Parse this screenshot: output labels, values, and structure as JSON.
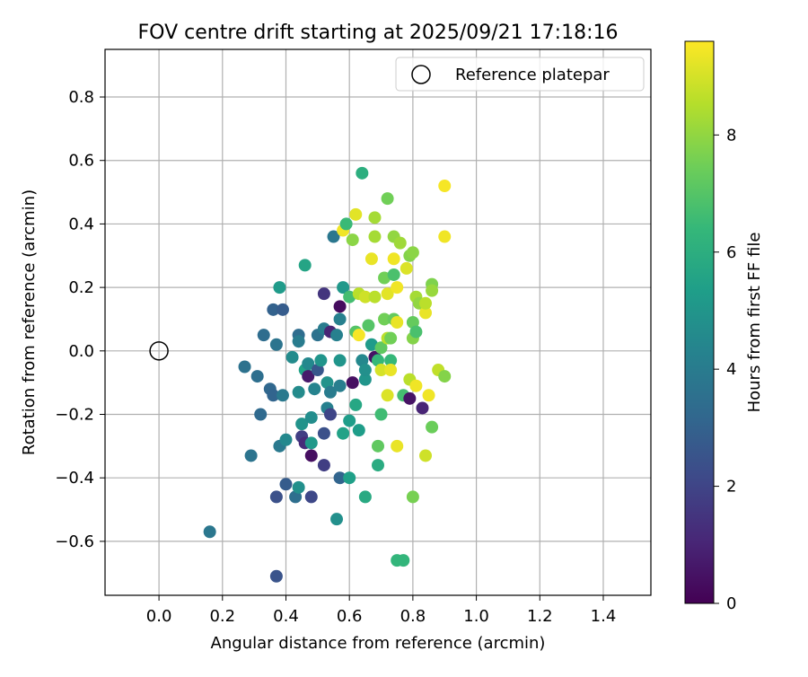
{
  "chart_data": {
    "type": "scatter",
    "title": "FOV centre drift starting at 2025/09/21 17:18:16",
    "xlabel": "Angular distance from reference (arcmin)",
    "ylabel": "Rotation from reference (arcmin)",
    "xlim": [
      -0.17,
      1.55
    ],
    "ylim": [
      -0.77,
      0.95
    ],
    "x_ticks": [
      "0.0",
      "0.2",
      "0.4",
      "0.6",
      "0.8",
      "1.0",
      "1.2",
      "1.4"
    ],
    "x_tick_values": [
      0.0,
      0.2,
      0.4,
      0.6,
      0.8,
      1.0,
      1.2,
      1.4
    ],
    "y_ticks": [
      "−0.6",
      "−0.4",
      "−0.2",
      "0.0",
      "0.2",
      "0.4",
      "0.6",
      "0.8"
    ],
    "y_tick_values": [
      -0.6,
      -0.4,
      -0.2,
      0.0,
      0.2,
      0.4,
      0.6,
      0.8
    ],
    "grid": true,
    "legend": {
      "label": "Reference platepar",
      "location": "top-right"
    },
    "reference": {
      "x": 0.0,
      "y": 0.0
    },
    "colorbar": {
      "label": "Hours from first FF file",
      "range": [
        0,
        9.6
      ],
      "ticks": [
        "0",
        "2",
        "4",
        "6",
        "8"
      ],
      "tick_values": [
        0,
        2,
        4,
        6,
        8
      ],
      "colormap_stops": [
        "#440154",
        "#482777",
        "#3e4989",
        "#31688e",
        "#26828e",
        "#1f9e89",
        "#35b779",
        "#6ece58",
        "#b5de2b",
        "#fde725"
      ]
    },
    "points": [
      {
        "x": 0.16,
        "y": -0.57,
        "t": 3.8
      },
      {
        "x": 0.27,
        "y": -0.05,
        "t": 3.6
      },
      {
        "x": 0.29,
        "y": -0.33,
        "t": 3.7
      },
      {
        "x": 0.31,
        "y": -0.08,
        "t": 3.5
      },
      {
        "x": 0.32,
        "y": -0.2,
        "t": 3.3
      },
      {
        "x": 0.33,
        "y": 0.05,
        "t": 3.4
      },
      {
        "x": 0.35,
        "y": -0.12,
        "t": 3.2
      },
      {
        "x": 0.36,
        "y": 0.13,
        "t": 3.0
      },
      {
        "x": 0.36,
        "y": -0.14,
        "t": 3.1
      },
      {
        "x": 0.37,
        "y": -0.46,
        "t": 2.4
      },
      {
        "x": 0.37,
        "y": -0.71,
        "t": 2.5
      },
      {
        "x": 0.37,
        "y": 0.02,
        "t": 3.7
      },
      {
        "x": 0.38,
        "y": 0.2,
        "t": 5.2
      },
      {
        "x": 0.38,
        "y": -0.3,
        "t": 3.9
      },
      {
        "x": 0.39,
        "y": 0.13,
        "t": 2.8
      },
      {
        "x": 0.39,
        "y": -0.14,
        "t": 3.9
      },
      {
        "x": 0.4,
        "y": -0.28,
        "t": 4.5
      },
      {
        "x": 0.4,
        "y": -0.42,
        "t": 2.8
      },
      {
        "x": 0.42,
        "y": -0.02,
        "t": 4.6
      },
      {
        "x": 0.43,
        "y": -0.46,
        "t": 3.5
      },
      {
        "x": 0.44,
        "y": 0.05,
        "t": 3.4
      },
      {
        "x": 0.44,
        "y": 0.03,
        "t": 4.0
      },
      {
        "x": 0.44,
        "y": -0.43,
        "t": 4.8
      },
      {
        "x": 0.44,
        "y": -0.13,
        "t": 4.6
      },
      {
        "x": 0.45,
        "y": -0.27,
        "t": 1.8
      },
      {
        "x": 0.45,
        "y": -0.23,
        "t": 4.9
      },
      {
        "x": 0.46,
        "y": -0.29,
        "t": 1.2
      },
      {
        "x": 0.46,
        "y": -0.06,
        "t": 5.5
      },
      {
        "x": 0.46,
        "y": 0.27,
        "t": 5.6
      },
      {
        "x": 0.47,
        "y": -0.08,
        "t": 0.7
      },
      {
        "x": 0.47,
        "y": -0.04,
        "t": 4.5
      },
      {
        "x": 0.48,
        "y": -0.29,
        "t": 5.1
      },
      {
        "x": 0.48,
        "y": -0.33,
        "t": 0.4
      },
      {
        "x": 0.48,
        "y": -0.21,
        "t": 4.7
      },
      {
        "x": 0.48,
        "y": -0.46,
        "t": 2.1
      },
      {
        "x": 0.49,
        "y": -0.12,
        "t": 4.3
      },
      {
        "x": 0.5,
        "y": 0.05,
        "t": 3.6
      },
      {
        "x": 0.5,
        "y": -0.06,
        "t": 2.6
      },
      {
        "x": 0.51,
        "y": -0.03,
        "t": 5.0
      },
      {
        "x": 0.52,
        "y": 0.07,
        "t": 4.0
      },
      {
        "x": 0.52,
        "y": 0.18,
        "t": 1.5
      },
      {
        "x": 0.52,
        "y": -0.26,
        "t": 2.4
      },
      {
        "x": 0.52,
        "y": -0.36,
        "t": 1.8
      },
      {
        "x": 0.53,
        "y": -0.18,
        "t": 4.2
      },
      {
        "x": 0.53,
        "y": -0.1,
        "t": 4.9
      },
      {
        "x": 0.54,
        "y": -0.2,
        "t": 2.0
      },
      {
        "x": 0.54,
        "y": 0.06,
        "t": 1.0
      },
      {
        "x": 0.54,
        "y": -0.13,
        "t": 4.0
      },
      {
        "x": 0.55,
        "y": 0.36,
        "t": 3.8
      },
      {
        "x": 0.56,
        "y": 0.05,
        "t": 4.2
      },
      {
        "x": 0.56,
        "y": -0.53,
        "t": 4.8
      },
      {
        "x": 0.57,
        "y": -0.11,
        "t": 4.1
      },
      {
        "x": 0.57,
        "y": -0.03,
        "t": 5.0
      },
      {
        "x": 0.57,
        "y": -0.4,
        "t": 3.1
      },
      {
        "x": 0.57,
        "y": 0.1,
        "t": 4.2
      },
      {
        "x": 0.57,
        "y": 0.14,
        "t": 0.3
      },
      {
        "x": 0.58,
        "y": 0.38,
        "t": 9.4
      },
      {
        "x": 0.58,
        "y": -0.26,
        "t": 5.5
      },
      {
        "x": 0.58,
        "y": 0.2,
        "t": 5.1
      },
      {
        "x": 0.59,
        "y": 0.4,
        "t": 6.5
      },
      {
        "x": 0.6,
        "y": -0.22,
        "t": 5.3
      },
      {
        "x": 0.6,
        "y": -0.4,
        "t": 5.4
      },
      {
        "x": 0.6,
        "y": 0.17,
        "t": 6.7
      },
      {
        "x": 0.61,
        "y": -0.1,
        "t": 0.4
      },
      {
        "x": 0.61,
        "y": 0.35,
        "t": 7.9
      },
      {
        "x": 0.62,
        "y": 0.43,
        "t": 9.2
      },
      {
        "x": 0.62,
        "y": 0.06,
        "t": 7.0
      },
      {
        "x": 0.62,
        "y": -0.17,
        "t": 5.7
      },
      {
        "x": 0.63,
        "y": 0.05,
        "t": 9.5
      },
      {
        "x": 0.63,
        "y": -0.25,
        "t": 5.3
      },
      {
        "x": 0.63,
        "y": 0.18,
        "t": 8.6
      },
      {
        "x": 0.64,
        "y": 0.56,
        "t": 6.0
      },
      {
        "x": 0.64,
        "y": -0.03,
        "t": 4.5
      },
      {
        "x": 0.65,
        "y": -0.46,
        "t": 5.8
      },
      {
        "x": 0.65,
        "y": -0.09,
        "t": 5.0
      },
      {
        "x": 0.65,
        "y": -0.06,
        "t": 4.8
      },
      {
        "x": 0.65,
        "y": 0.17,
        "t": 8.9
      },
      {
        "x": 0.66,
        "y": 0.08,
        "t": 7.0
      },
      {
        "x": 0.67,
        "y": 0.29,
        "t": 9.3
      },
      {
        "x": 0.67,
        "y": 0.02,
        "t": 5.2
      },
      {
        "x": 0.68,
        "y": 0.42,
        "t": 8.3
      },
      {
        "x": 0.68,
        "y": 0.36,
        "t": 8.3
      },
      {
        "x": 0.68,
        "y": 0.17,
        "t": 8.6
      },
      {
        "x": 0.68,
        "y": -0.02,
        "t": 0.5
      },
      {
        "x": 0.69,
        "y": -0.3,
        "t": 7.2
      },
      {
        "x": 0.69,
        "y": -0.36,
        "t": 5.9
      },
      {
        "x": 0.69,
        "y": -0.03,
        "t": 6.4
      },
      {
        "x": 0.7,
        "y": 0.01,
        "t": 7.2
      },
      {
        "x": 0.7,
        "y": -0.2,
        "t": 6.6
      },
      {
        "x": 0.7,
        "y": -0.06,
        "t": 9.0
      },
      {
        "x": 0.71,
        "y": 0.23,
        "t": 7.5
      },
      {
        "x": 0.71,
        "y": 0.1,
        "t": 7.5
      },
      {
        "x": 0.72,
        "y": 0.48,
        "t": 7.5
      },
      {
        "x": 0.72,
        "y": 0.18,
        "t": 9.2
      },
      {
        "x": 0.72,
        "y": 0.04,
        "t": 8.6
      },
      {
        "x": 0.72,
        "y": -0.14,
        "t": 9.1
      },
      {
        "x": 0.73,
        "y": -0.03,
        "t": 6.4
      },
      {
        "x": 0.73,
        "y": -0.06,
        "t": 9.3
      },
      {
        "x": 0.73,
        "y": 0.04,
        "t": 7.5
      },
      {
        "x": 0.74,
        "y": 0.36,
        "t": 8.0
      },
      {
        "x": 0.74,
        "y": 0.29,
        "t": 9.4
      },
      {
        "x": 0.74,
        "y": 0.24,
        "t": 6.8
      },
      {
        "x": 0.74,
        "y": 0.1,
        "t": 7.3
      },
      {
        "x": 0.75,
        "y": 0.2,
        "t": 9.4
      },
      {
        "x": 0.75,
        "y": 0.09,
        "t": 9.3
      },
      {
        "x": 0.75,
        "y": -0.3,
        "t": 9.3
      },
      {
        "x": 0.75,
        "y": -0.66,
        "t": 6.3
      },
      {
        "x": 0.76,
        "y": 0.34,
        "t": 8.2
      },
      {
        "x": 0.77,
        "y": -0.14,
        "t": 6.7
      },
      {
        "x": 0.77,
        "y": -0.66,
        "t": 6.3
      },
      {
        "x": 0.78,
        "y": 0.26,
        "t": 9.1
      },
      {
        "x": 0.79,
        "y": 0.3,
        "t": 7.8
      },
      {
        "x": 0.79,
        "y": -0.09,
        "t": 8.6
      },
      {
        "x": 0.79,
        "y": -0.15,
        "t": 0.5
      },
      {
        "x": 0.8,
        "y": 0.31,
        "t": 7.9
      },
      {
        "x": 0.8,
        "y": 0.09,
        "t": 7.3
      },
      {
        "x": 0.8,
        "y": -0.46,
        "t": 7.6
      },
      {
        "x": 0.8,
        "y": 0.04,
        "t": 7.8
      },
      {
        "x": 0.81,
        "y": 0.17,
        "t": 8.3
      },
      {
        "x": 0.81,
        "y": -0.11,
        "t": 9.4
      },
      {
        "x": 0.81,
        "y": 0.06,
        "t": 6.8
      },
      {
        "x": 0.82,
        "y": 0.15,
        "t": 8.0
      },
      {
        "x": 0.83,
        "y": -0.18,
        "t": 1.0
      },
      {
        "x": 0.84,
        "y": 0.12,
        "t": 9.3
      },
      {
        "x": 0.84,
        "y": 0.15,
        "t": 8.6
      },
      {
        "x": 0.84,
        "y": -0.33,
        "t": 8.9
      },
      {
        "x": 0.85,
        "y": -0.14,
        "t": 9.4
      },
      {
        "x": 0.86,
        "y": -0.24,
        "t": 7.4
      },
      {
        "x": 0.86,
        "y": 0.21,
        "t": 7.7
      },
      {
        "x": 0.86,
        "y": 0.19,
        "t": 8.1
      },
      {
        "x": 0.88,
        "y": -0.06,
        "t": 8.7
      },
      {
        "x": 0.9,
        "y": 0.52,
        "t": 9.5
      },
      {
        "x": 0.9,
        "y": 0.36,
        "t": 9.4
      },
      {
        "x": 0.9,
        "y": -0.08,
        "t": 7.8
      }
    ]
  }
}
